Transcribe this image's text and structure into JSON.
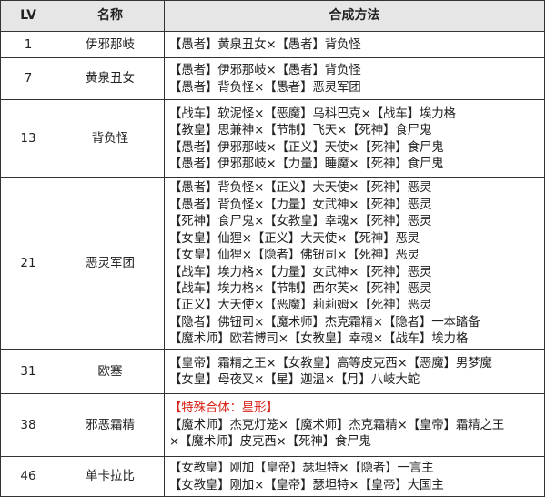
{
  "headers": {
    "lv": "LV",
    "name": "名称",
    "method": "合成方法"
  },
  "colors": {
    "header_bg": "#e6e6e6",
    "special": "#d9261c"
  },
  "rows": [
    {
      "lv": "1",
      "name": "伊邪那岐",
      "lines": [
        "【愚者】黄泉丑女×【愚者】背负怪"
      ]
    },
    {
      "lv": "7",
      "name": "黄泉丑女",
      "lines": [
        "【愚者】伊邪那岐×【愚者】背负怪",
        "【愚者】背负怪×【愚者】恶灵军团"
      ]
    },
    {
      "lv": "13",
      "name": "背负怪",
      "lines": [
        "【战车】软泥怪×【恶魔】乌科巴克×【战车】埃力格",
        "【教皇】思兼神×【节制】飞天×【死神】食尸鬼",
        "【愚者】伊邪那岐×【正义】天使×【死神】食尸鬼",
        "【愚者】伊邪那岐×【力量】睡魔×【死神】食尸鬼"
      ]
    },
    {
      "lv": "21",
      "name": "恶灵军团",
      "lines": [
        "【愚者】背负怪×【正义】大天使×【死神】恶灵",
        "【愚者】背负怪×【力量】女武神×【死神】恶灵",
        "【死神】食尸鬼×【女教皇】幸魂×【死神】恶灵",
        "【女皇】仙狸×【正义】大天使×【死神】恶灵",
        "【女皇】仙狸×【隐者】佛钮司×【死神】恶灵",
        "【战车】埃力格×【力量】女武神×【死神】恶灵",
        "【战车】埃力格×【节制】西尔芙×【死神】恶灵",
        "【正义】大天使×【恶魔】莉莉姆×【死神】恶灵",
        "【隐者】佛钮司×【魔术师】杰克霜精×【隐者】一本踏备",
        "【魔术师】欧若博司×【女教皇】幸魂×【战车】埃力格"
      ]
    },
    {
      "lv": "31",
      "name": "欧塞",
      "lines": [
        "【皇帝】霜精之王×【女教皇】高等皮克西×【恶魔】男梦魔",
        "【女皇】母夜叉×【星】迦温×【月】八岐大蛇"
      ]
    },
    {
      "lv": "38",
      "name": "邪恶霜精",
      "special": "【特殊合体：星形】",
      "lines": [
        "【魔术师】杰克灯笼×【魔术师】杰克霜精×【皇帝】霜精之王",
        "×【魔术师】皮克西×【死神】食尸鬼"
      ]
    },
    {
      "lv": "46",
      "name": "单卡拉比",
      "lines": [
        "【女教皇】刚加【皇帝】瑟坦特×【隐者】一言主",
        "【女教皇】刚加×【皇帝】瑟坦特×【皇帝】大国主"
      ]
    }
  ]
}
